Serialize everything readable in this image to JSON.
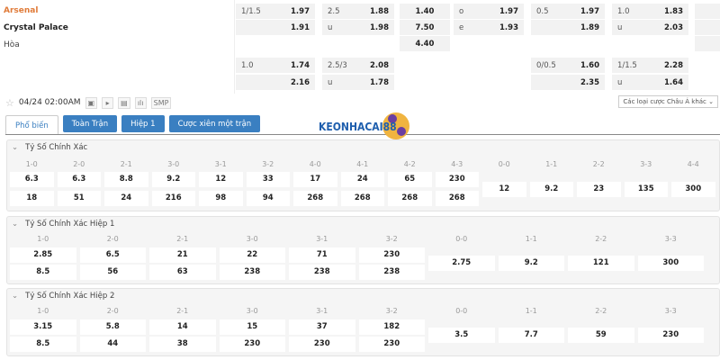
{
  "match": {
    "home": "Arsenal",
    "away": "Crystal Palace",
    "draw": "Hòa",
    "home_color": "#e07b39"
  },
  "top_odds": [
    {
      "col": 0,
      "row": 0,
      "label": "1/1.5",
      "value": "1.97"
    },
    {
      "col": 0,
      "row": 1,
      "label": "",
      "value": "1.91"
    },
    {
      "col": 1,
      "row": 0,
      "label": "2.5",
      "value": "1.88"
    },
    {
      "col": 1,
      "row": 1,
      "label": "u",
      "value": "1.98"
    },
    {
      "col": 2,
      "row": 0,
      "label": "",
      "value": "1.40"
    },
    {
      "col": 2,
      "row": 1,
      "label": "",
      "value": "7.50"
    },
    {
      "col": 2,
      "row": 2,
      "label": "",
      "value": "4.40"
    },
    {
      "col": 3,
      "row": 0,
      "label": "o",
      "value": "1.97"
    },
    {
      "col": 3,
      "row": 1,
      "label": "e",
      "value": "1.93"
    },
    {
      "col": 4,
      "row": 0,
      "label": "0.5",
      "value": "1.97"
    },
    {
      "col": 4,
      "row": 1,
      "label": "",
      "value": "1.89"
    },
    {
      "col": 5,
      "row": 0,
      "label": "1.0",
      "value": "1.83"
    },
    {
      "col": 5,
      "row": 1,
      "label": "u",
      "value": "2.03"
    },
    {
      "col": 6,
      "row": 0,
      "label": "",
      "value": ""
    },
    {
      "col": 6,
      "row": 1,
      "label": "",
      "value": ""
    },
    {
      "col": 6,
      "row": 2,
      "label": "",
      "value": ""
    },
    {
      "col": 0,
      "row": 3,
      "label": "1.0",
      "value": "1.74"
    },
    {
      "col": 0,
      "row": 4,
      "label": "",
      "value": "2.16"
    },
    {
      "col": 1,
      "row": 3,
      "label": "2.5/3",
      "value": "2.08"
    },
    {
      "col": 1,
      "row": 4,
      "label": "u",
      "value": "1.78"
    },
    {
      "col": 4,
      "row": 3,
      "label": "0/0.5",
      "value": "1.60"
    },
    {
      "col": 4,
      "row": 4,
      "label": "",
      "value": "2.35"
    },
    {
      "col": 5,
      "row": 3,
      "label": "1/1.5",
      "value": "2.28"
    },
    {
      "col": 5,
      "row": 4,
      "label": "u",
      "value": "1.64"
    }
  ],
  "toolbar": {
    "datetime": "04/24 02:00AM",
    "smp": "SMP",
    "other_bets": "Các loại cược Châu Á khác"
  },
  "tabs": [
    {
      "label": "Phổ biến",
      "active": true
    },
    {
      "label": "Toàn Trận"
    },
    {
      "label": "Hiệp 1"
    },
    {
      "label": "Cược xiên một trận"
    }
  ],
  "logo_text": "KEONHACAI88",
  "sections": [
    {
      "title": "Tỷ Số Chính Xác",
      "scores": [
        [
          "1-0",
          "6.3",
          "18"
        ],
        [
          "2-0",
          "6.3",
          "51"
        ],
        [
          "2-1",
          "8.8",
          "24"
        ],
        [
          "3-0",
          "9.2",
          "216"
        ],
        [
          "3-1",
          "12",
          "98"
        ],
        [
          "3-2",
          "33",
          "94"
        ],
        [
          "4-0",
          "17",
          "268"
        ],
        [
          "4-1",
          "24",
          "268"
        ],
        [
          "4-2",
          "65",
          "268"
        ],
        [
          "4-3",
          "230",
          "268"
        ]
      ],
      "draws": [
        [
          "0-0",
          "12"
        ],
        [
          "1-1",
          "9.2"
        ],
        [
          "2-2",
          "23"
        ],
        [
          "3-3",
          "135"
        ],
        [
          "4-4",
          "300"
        ]
      ]
    },
    {
      "title": "Tỷ Số Chính Xác Hiệp 1",
      "scores": [
        [
          "1-0",
          "2.85",
          "8.5"
        ],
        [
          "2-0",
          "6.5",
          "56"
        ],
        [
          "2-1",
          "21",
          "63"
        ],
        [
          "3-0",
          "22",
          "238"
        ],
        [
          "3-1",
          "71",
          "238"
        ],
        [
          "3-2",
          "230",
          "238"
        ]
      ],
      "draws": [
        [
          "0-0",
          "2.75"
        ],
        [
          "1-1",
          "9.2"
        ],
        [
          "2-2",
          "121"
        ],
        [
          "3-3",
          "300"
        ]
      ]
    },
    {
      "title": "Tỷ Số Chính Xác Hiệp 2",
      "scores": [
        [
          "1-0",
          "3.15",
          "8.5"
        ],
        [
          "2-0",
          "5.8",
          "44"
        ],
        [
          "2-1",
          "14",
          "38"
        ],
        [
          "3-0",
          "15",
          "230"
        ],
        [
          "3-1",
          "37",
          "230"
        ],
        [
          "3-2",
          "182",
          "230"
        ]
      ],
      "draws": [
        [
          "0-0",
          "3.5"
        ],
        [
          "1-1",
          "7.7"
        ],
        [
          "2-2",
          "59"
        ],
        [
          "3-3",
          "230"
        ]
      ]
    }
  ]
}
